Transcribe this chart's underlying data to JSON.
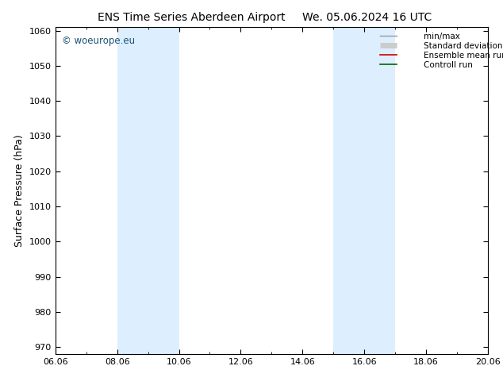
{
  "title_left": "ENS Time Series Aberdeen Airport",
  "title_right": "We. 05.06.2024 16 UTC",
  "ylabel": "Surface Pressure (hPa)",
  "ylim": [
    968,
    1061
  ],
  "yticks": [
    970,
    980,
    990,
    1000,
    1010,
    1020,
    1030,
    1040,
    1050,
    1060
  ],
  "xtick_labels": [
    "06.06",
    "08.06",
    "10.06",
    "12.06",
    "14.06",
    "16.06",
    "18.06",
    "20.06"
  ],
  "xtick_positions": [
    0,
    2,
    4,
    6,
    8,
    10,
    12,
    14
  ],
  "shade_bands": [
    {
      "start": 2,
      "end": 4
    },
    {
      "start": 9,
      "end": 11
    }
  ],
  "shade_color": "#ddeeff",
  "watermark_text": "© woeurope.eu",
  "watermark_color": "#1a5276",
  "legend_entries": [
    {
      "label": "min/max",
      "color": "#999999",
      "lw": 1.0
    },
    {
      "label": "Standard deviation",
      "color": "#cccccc",
      "lw": 5
    },
    {
      "label": "Ensemble mean run",
      "color": "#cc0000",
      "lw": 1.2
    },
    {
      "label": "Controll run",
      "color": "#006600",
      "lw": 1.2
    }
  ],
  "bg_color": "white",
  "title_fontsize": 10,
  "axis_label_fontsize": 9,
  "tick_fontsize": 8,
  "legend_fontsize": 7.5
}
